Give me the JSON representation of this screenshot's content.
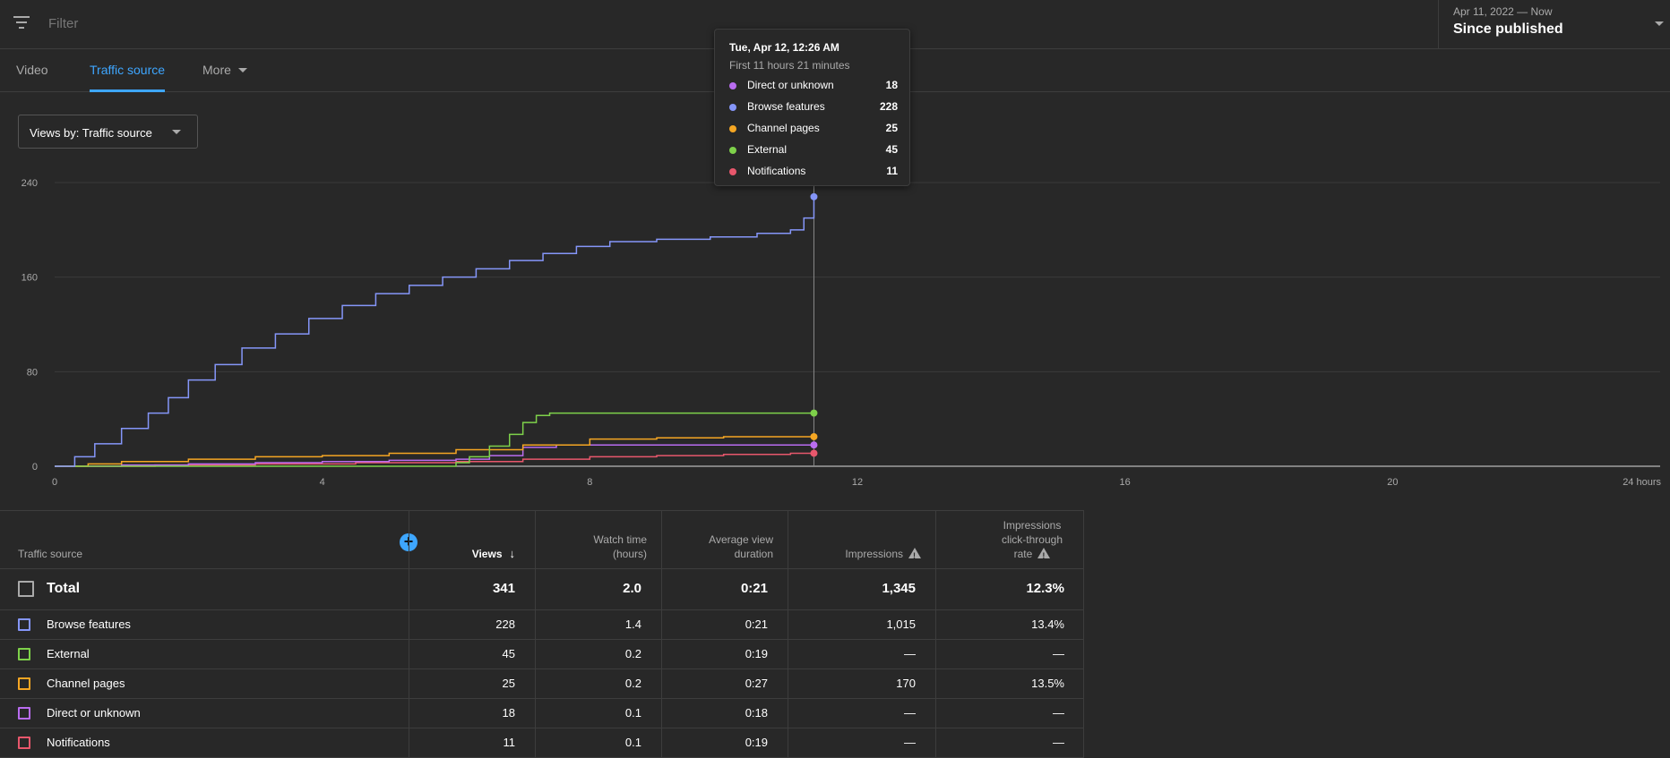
{
  "filter": {
    "placeholder": "Filter"
  },
  "date_picker": {
    "range": "Apr 11, 2022 — Now",
    "label": "Since published"
  },
  "tabs": [
    {
      "label": "Video",
      "active": false
    },
    {
      "label": "Traffic source",
      "active": true
    },
    {
      "label": "More",
      "active": false
    }
  ],
  "dropdown": {
    "label": "Views by: Traffic source"
  },
  "tooltip": {
    "title": "Tue, Apr 12, 12:26 AM",
    "subtitle": "First 11 hours 21 minutes",
    "rows": [
      {
        "name": "Direct or unknown",
        "value": "18",
        "color": "#b96cf0"
      },
      {
        "name": "Browse features",
        "value": "228",
        "color": "#8596f9"
      },
      {
        "name": "Channel pages",
        "value": "25",
        "color": "#f5a623"
      },
      {
        "name": "External",
        "value": "45",
        "color": "#7ed14a"
      },
      {
        "name": "Notifications",
        "value": "11",
        "color": "#e8576c"
      }
    ]
  },
  "chart_data": {
    "type": "line",
    "x_ticks": [
      "0",
      "4",
      "8",
      "12",
      "16",
      "20",
      "24 hours"
    ],
    "y_ticks": [
      "0",
      "80",
      "160",
      "240"
    ],
    "xlim": [
      0,
      24
    ],
    "ylim": [
      0,
      240
    ],
    "hover_x": 11.35,
    "series": [
      {
        "name": "Browse features",
        "color": "#8596f9",
        "x": [
          0,
          0.3,
          0.6,
          1.0,
          1.4,
          1.7,
          2.0,
          2.4,
          2.8,
          3.3,
          3.8,
          4.3,
          4.8,
          5.3,
          5.8,
          6.3,
          6.8,
          7.3,
          7.8,
          8.3,
          9.0,
          9.8,
          10.5,
          11.0,
          11.2,
          11.35
        ],
        "y": [
          0,
          8,
          19,
          32,
          45,
          58,
          73,
          86,
          100,
          112,
          125,
          136,
          146,
          153,
          160,
          167,
          174,
          180,
          186,
          190,
          192,
          194,
          197,
          200,
          210,
          228
        ]
      },
      {
        "name": "External",
        "color": "#7ed14a",
        "x": [
          0,
          6.0,
          6.2,
          6.5,
          6.8,
          7.0,
          7.2,
          7.4,
          8.0,
          11.35
        ],
        "y": [
          0,
          3,
          8,
          17,
          27,
          37,
          43,
          45,
          45,
          45
        ]
      },
      {
        "name": "Channel pages",
        "color": "#f5a623",
        "x": [
          0,
          0.5,
          1.0,
          2.0,
          3.0,
          4.0,
          5.0,
          6.0,
          7.0,
          8.0,
          9.0,
          10.0,
          11.35
        ],
        "y": [
          0,
          2,
          4,
          6,
          8,
          9,
          11,
          14,
          18,
          23,
          24,
          25,
          25
        ]
      },
      {
        "name": "Direct or unknown",
        "color": "#b96cf0",
        "x": [
          0,
          1.0,
          2.0,
          3.0,
          4.0,
          5.0,
          6.0,
          6.5,
          7.0,
          7.5,
          8.0,
          11.35
        ],
        "y": [
          0,
          1,
          2,
          3,
          4,
          5,
          6,
          9,
          16,
          18,
          18,
          18
        ]
      },
      {
        "name": "Notifications",
        "color": "#e8576c",
        "x": [
          0,
          1.5,
          3.0,
          4.5,
          6.0,
          7.0,
          8.0,
          9.0,
          10.0,
          11.0,
          11.35
        ],
        "y": [
          0,
          1,
          2,
          3,
          4,
          6,
          8,
          9,
          10,
          11,
          11
        ]
      }
    ]
  },
  "table": {
    "headers": {
      "source": "Traffic source",
      "views": "Views",
      "watch_time": [
        "Watch time",
        "(hours)"
      ],
      "avg_duration": [
        "Average view",
        "duration"
      ],
      "impressions": "Impressions",
      "ctr": [
        "Impressions",
        "click-through",
        "rate"
      ]
    },
    "total": {
      "name": "Total",
      "views": "341",
      "watch_time": "2.0",
      "avg_duration": "0:21",
      "impressions": "1,345",
      "ctr": "12.3%"
    },
    "rows": [
      {
        "name": "Browse features",
        "color": "#8596f9",
        "views": "228",
        "watch_time": "1.4",
        "avg_duration": "0:21",
        "impressions": "1,015",
        "ctr": "13.4%"
      },
      {
        "name": "External",
        "color": "#7ed14a",
        "views": "45",
        "watch_time": "0.2",
        "avg_duration": "0:19",
        "impressions": "—",
        "ctr": "—"
      },
      {
        "name": "Channel pages",
        "color": "#f5a623",
        "views": "25",
        "watch_time": "0.2",
        "avg_duration": "0:27",
        "impressions": "170",
        "ctr": "13.5%"
      },
      {
        "name": "Direct or unknown",
        "color": "#b96cf0",
        "views": "18",
        "watch_time": "0.1",
        "avg_duration": "0:18",
        "impressions": "—",
        "ctr": "—"
      },
      {
        "name": "Notifications",
        "color": "#e8576c",
        "views": "11",
        "watch_time": "0.1",
        "avg_duration": "0:19",
        "impressions": "—",
        "ctr": "—"
      }
    ]
  }
}
